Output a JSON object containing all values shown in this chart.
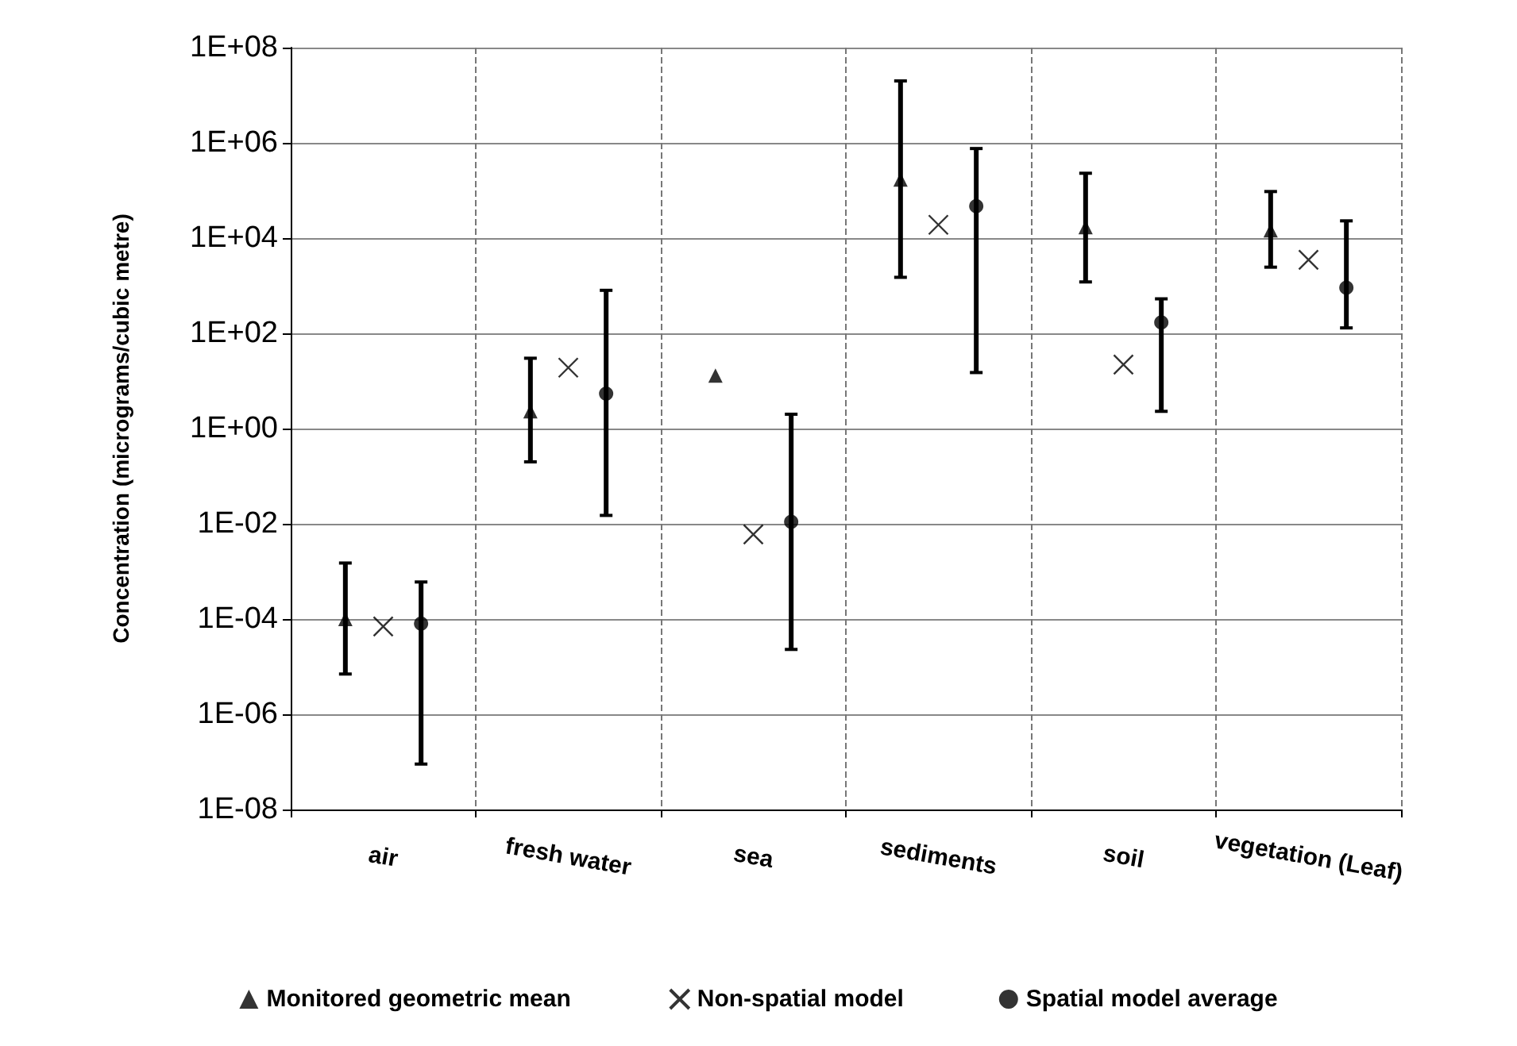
{
  "chart_data": {
    "type": "scatter",
    "ylabel": "Concentration (micrograms/cubic metre)",
    "categories": [
      "air",
      "fresh water",
      "sea",
      "sediments",
      "soil",
      "vegetation (Leaf)"
    ],
    "series": [
      {
        "name": "Monitored geometric mean",
        "color": "#000000",
        "marker": "triangle",
        "values": [
          0.0001,
          2.3,
          13,
          170000,
          17000,
          14500
        ],
        "errors": [
          [
            7e-06,
            0.0015
          ],
          [
            0.2,
            30
          ],
          null,
          [
            1500,
            20000000
          ],
          [
            1200,
            230000
          ],
          [
            2450,
            95000
          ]
        ]
      },
      {
        "name": "Non-spatial model",
        "color": "#000000",
        "marker": "cross",
        "values": [
          7e-05,
          19,
          0.006,
          19000,
          22,
          3500
        ]
      },
      {
        "name": "Spatial model average",
        "color": "#000000",
        "marker": "circle",
        "values": [
          8e-05,
          5.4,
          0.011,
          47000,
          170,
          910
        ],
        "errors": [
          [
            9e-08,
            0.0006
          ],
          [
            0.015,
            800
          ],
          [
            2.3e-05,
            2
          ],
          [
            15,
            760000
          ],
          [
            2.3,
            530
          ],
          [
            130,
            23000
          ]
        ]
      }
    ],
    "log": "y",
    "ylim": [
      1e-08,
      100000000.0
    ],
    "yticks": [
      {
        "value": 1e-08,
        "label": "1E-08"
      },
      {
        "value": 1e-06,
        "label": "1E-06"
      },
      {
        "value": 0.0001,
        "label": "1E-04"
      },
      {
        "value": 0.01,
        "label": "1E-02"
      },
      {
        "value": 1,
        "label": "1E+00"
      },
      {
        "value": 100,
        "label": "1E+02"
      },
      {
        "value": 10000,
        "label": "1E+04"
      },
      {
        "value": 1000000,
        "label": "1E+06"
      },
      {
        "value": 100000000,
        "label": "1E+08"
      }
    ],
    "grid": true,
    "legend": "bottom"
  }
}
